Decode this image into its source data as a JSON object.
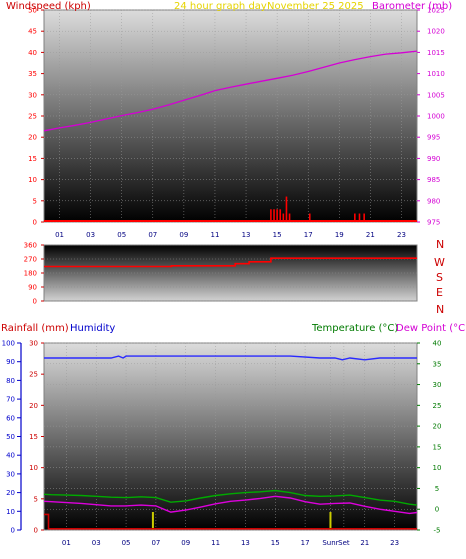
{
  "header": {
    "wind_label": "Windspeed (kph)",
    "title": "24 hour graph day",
    "date": "November 25 2025",
    "baro_label": "Barometer (mb)"
  },
  "middle": {
    "compass": [
      "N",
      "W",
      "S",
      "E",
      "N"
    ]
  },
  "bottom": {
    "rain_label": "Rainfall (mm)",
    "humidity_label": "Humidity",
    "temp_label": "Temperature (°C)",
    "dew_label": "Dew Point (°C)",
    "sunrise_label": "Sunr",
    "sunset_label": "Set"
  },
  "colors": {
    "wind": "#ff0000",
    "barometer": "#d400d4",
    "title": "#e6d400",
    "direction": "#ff0000",
    "compass": "#cc0000",
    "rain": "#cc0000",
    "humidity": "#0000cc",
    "humidity_line": "#2a2aff",
    "temperature": "#007a00",
    "temp_line": "#00aa00",
    "dew_line": "#dd00dd",
    "sun_marker": "#cccc00"
  },
  "chart_data": [
    {
      "type": "line",
      "name": "wind-barometer",
      "x_ticks": [
        "01",
        "03",
        "05",
        "07",
        "09",
        "11",
        "13",
        "15",
        "17",
        "19",
        "21",
        "23"
      ],
      "y_left_ticks": [
        0,
        5,
        10,
        15,
        20,
        25,
        30,
        35,
        40,
        45,
        50
      ],
      "y_left_range": [
        0,
        50
      ],
      "y_right_ticks": [
        975,
        980,
        985,
        990,
        995,
        1000,
        1005,
        1010,
        1015,
        1020,
        1025
      ],
      "y_right_range": [
        975,
        1025
      ],
      "x_range": [
        0,
        24
      ],
      "barometer": {
        "x": [
          0,
          1,
          2,
          3,
          4,
          5,
          6,
          7,
          8,
          9,
          10,
          11,
          12,
          13,
          14,
          15,
          16,
          17,
          18,
          19,
          20,
          21,
          22,
          23,
          24
        ],
        "y": [
          996.5,
          997.2,
          997.8,
          998.5,
          999.3,
          1000.1,
          1000.8,
          1001.6,
          1002.6,
          1003.7,
          1004.8,
          1006.0,
          1006.8,
          1007.5,
          1008.2,
          1008.9,
          1009.6,
          1010.5,
          1011.5,
          1012.5,
          1013.3,
          1014.0,
          1014.6,
          1014.9,
          1015.3
        ]
      },
      "wind_bars": [
        {
          "x": 14.6,
          "v": 3
        },
        {
          "x": 14.8,
          "v": 3
        },
        {
          "x": 15.0,
          "v": 3
        },
        {
          "x": 15.2,
          "v": 3
        },
        {
          "x": 15.4,
          "v": 2
        },
        {
          "x": 15.6,
          "v": 6
        },
        {
          "x": 15.8,
          "v": 2
        },
        {
          "x": 17.1,
          "v": 2
        },
        {
          "x": 20.0,
          "v": 2
        },
        {
          "x": 20.3,
          "v": 2
        },
        {
          "x": 20.6,
          "v": 2
        }
      ]
    },
    {
      "type": "line",
      "name": "wind-direction",
      "y_ticks": [
        0,
        90,
        180,
        270,
        360
      ],
      "y_range": [
        0,
        360
      ],
      "x_range": [
        0,
        24
      ],
      "direction": {
        "x": [
          0,
          8.2,
          8.2,
          12.3,
          12.3,
          13.2,
          13.2,
          14.6,
          14.6,
          24
        ],
        "y": [
          222,
          222,
          226,
          226,
          240,
          240,
          252,
          252,
          275,
          275
        ]
      }
    },
    {
      "type": "line",
      "name": "rain-humidity-temperature",
      "x_ticks": [
        "01",
        "03",
        "05",
        "07",
        "09",
        "11",
        "13",
        "15",
        "17",
        "Sunr",
        "Set",
        "21",
        "23"
      ],
      "y_humidity_ticks": [
        0,
        10,
        20,
        30,
        40,
        50,
        60,
        70,
        80,
        90,
        100
      ],
      "y_rain_ticks": [
        0,
        5,
        10,
        15,
        20,
        25,
        30
      ],
      "y_temp_ticks": [
        -5,
        0,
        5,
        10,
        15,
        20,
        25,
        30,
        35,
        40
      ],
      "humidity_range": [
        0,
        100
      ],
      "rain_range": [
        0,
        30
      ],
      "temp_range": [
        -5,
        40
      ],
      "x_range": [
        -0.5,
        24.5
      ],
      "humidity": {
        "x": [
          -0.5,
          0,
          1,
          2,
          3,
          4,
          4.5,
          4.8,
          5,
          5.2,
          6,
          8,
          10,
          12,
          14,
          16,
          18,
          19,
          19.5,
          20,
          21,
          22,
          23,
          24,
          24.5
        ],
        "y": [
          92,
          92,
          92,
          92,
          92,
          92,
          93,
          92,
          93,
          93,
          93,
          93,
          93,
          93,
          93,
          93,
          92,
          92,
          91,
          92,
          91,
          92,
          92,
          92,
          92
        ]
      },
      "temperature": {
        "x": [
          -0.5,
          0,
          1,
          2,
          3,
          4,
          5,
          6,
          7,
          8,
          9,
          10,
          11,
          12,
          13,
          14,
          15,
          16,
          17,
          18,
          19,
          20,
          21,
          22,
          23,
          24,
          24.5
        ],
        "y": [
          3.6,
          3.5,
          3.4,
          3.3,
          3.1,
          2.9,
          2.8,
          3.0,
          2.8,
          1.7,
          2.0,
          2.7,
          3.3,
          3.7,
          4.0,
          4.2,
          4.5,
          4.0,
          3.3,
          3.1,
          3.2,
          3.4,
          2.8,
          2.2,
          1.9,
          1.2,
          1.0
        ]
      },
      "dew_point": {
        "x": [
          -0.5,
          0,
          1,
          2,
          3,
          4,
          5,
          6,
          7,
          8,
          9,
          10,
          11,
          12,
          13,
          14,
          15,
          16,
          17,
          18,
          19,
          20,
          21,
          22,
          23,
          24,
          24.5
        ],
        "y": [
          1.9,
          1.8,
          1.6,
          1.4,
          1.1,
          0.8,
          0.8,
          1.0,
          0.8,
          -0.7,
          -0.2,
          0.5,
          1.3,
          1.9,
          2.2,
          2.6,
          3.1,
          2.7,
          1.8,
          1.2,
          1.4,
          1.5,
          0.7,
          0.0,
          -0.5,
          -1.0,
          -0.8
        ]
      },
      "rain": {
        "x": [
          -0.5,
          -0.2,
          -0.2,
          24.5
        ],
        "y": [
          2.5,
          2.5,
          0.2,
          0.2
        ]
      },
      "sun_markers": [
        6.8,
        18.7
      ]
    }
  ]
}
